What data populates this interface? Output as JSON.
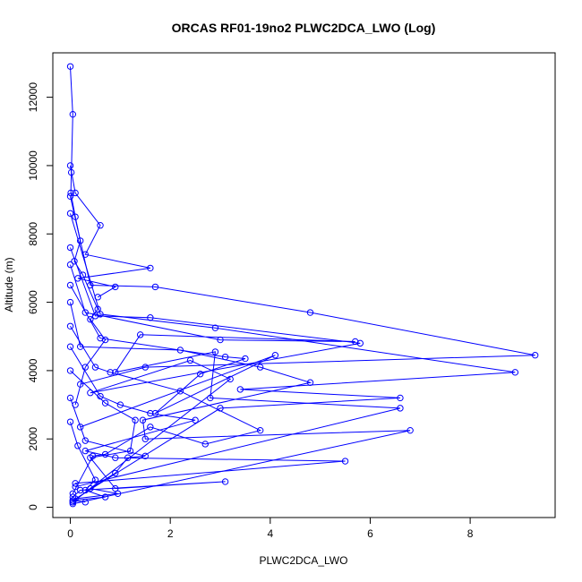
{
  "chart_data": {
    "type": "line",
    "title": "ORCAS RF01-19no2 PLWC2DCA_LWO (Log)",
    "xlabel": "PLWC2DCA_LWO",
    "ylabel": "Altitude (m)",
    "xlim": [
      -0.35,
      9.7
    ],
    "ylim": [
      -300,
      13300
    ],
    "xticks": [
      0,
      2,
      4,
      6,
      8
    ],
    "yticks": [
      0,
      2000,
      4000,
      6000,
      8000,
      10000,
      12000
    ],
    "color": "#0000ff",
    "markers": "open-circle",
    "series": [
      {
        "x": [
          0,
          0.05,
          0.02,
          0.01,
          0.1,
          0.2,
          0.08,
          0.25,
          0.55,
          0.4,
          0.7,
          0.3,
          0.1
        ],
        "y": [
          12900,
          11500,
          9800,
          9200,
          8500,
          7800,
          7200,
          6800,
          5800,
          5500,
          4900,
          4100,
          3000
        ]
      },
      {
        "x": [
          0,
          0.1,
          0.6,
          0.3,
          1.6,
          0.15,
          0.9,
          0.55
        ],
        "y": [
          10000,
          9200,
          8250,
          7400,
          7000,
          6700,
          6450,
          6150
        ]
      },
      {
        "x": [
          0,
          0.4,
          1.7,
          4.8,
          9.3,
          1.5,
          0.2
        ],
        "y": [
          9100,
          6500,
          6450,
          5700,
          4450,
          4100,
          3600
        ]
      },
      {
        "x": [
          0,
          0.6,
          2.9,
          8.9,
          3.4,
          6.6,
          3.0,
          0.05
        ],
        "y": [
          8600,
          5650,
          5250,
          3950,
          3450,
          3200,
          2900,
          200
        ]
      },
      {
        "x": [
          0,
          0.5,
          1.6,
          5.8,
          0.4,
          2.4,
          3.2,
          0.05
        ],
        "y": [
          7600,
          5600,
          5550,
          4800,
          3350,
          4300,
          3750,
          150
        ]
      },
      {
        "x": [
          0,
          0.3,
          3.0,
          5.7,
          1.4,
          0.9,
          2.9,
          2.8,
          6.6,
          0.1
        ],
        "y": [
          7100,
          5700,
          4900,
          4850,
          5050,
          3950,
          4550,
          3200,
          2900,
          600
        ]
      },
      {
        "x": [
          0,
          0.6,
          3.1,
          3.5,
          2.6,
          1.7,
          4.1,
          0.2
        ],
        "y": [
          6500,
          4950,
          4400,
          4350,
          3900,
          2750,
          4450,
          2350
        ]
      },
      {
        "x": [
          0,
          0.2,
          2.2,
          3.8,
          4.8,
          1.45,
          1.5,
          6.8,
          0.05
        ],
        "y": [
          6000,
          4700,
          4600,
          4100,
          3650,
          2550,
          2000,
          2250,
          100
        ]
      },
      {
        "x": [
          0,
          0.5,
          0.8,
          2.2,
          3.8,
          2.7,
          1.6,
          0.7,
          0.45,
          0.05
        ],
        "y": [
          5300,
          4100,
          3950,
          3400,
          2250,
          1850,
          2350,
          1550,
          1500,
          400
        ]
      },
      {
        "x": [
          0,
          0.6,
          1.0,
          1.6,
          2.5,
          0.3,
          0.9,
          5.5,
          0.1
        ],
        "y": [
          4700,
          3250,
          3000,
          2750,
          2550,
          1650,
          1450,
          1350,
          700
        ]
      },
      {
        "x": [
          0,
          0.7,
          1.3,
          1.2,
          0.4,
          0.9,
          3.1,
          0.2,
          0.05
        ],
        "y": [
          4000,
          3050,
          2550,
          1650,
          1450,
          550,
          750,
          500,
          300
        ]
      },
      {
        "x": [
          0,
          0.3,
          1.5,
          1.15,
          0.9,
          0.4,
          0.95,
          0.1,
          0.05
        ],
        "y": [
          3200,
          1950,
          1500,
          1450,
          1000,
          550,
          400,
          250,
          150
        ]
      },
      {
        "x": [
          0,
          0.15,
          0.5,
          0.3,
          0.7,
          0.05,
          0.3
        ],
        "y": [
          2500,
          1800,
          800,
          500,
          300,
          200,
          150
        ]
      }
    ]
  }
}
